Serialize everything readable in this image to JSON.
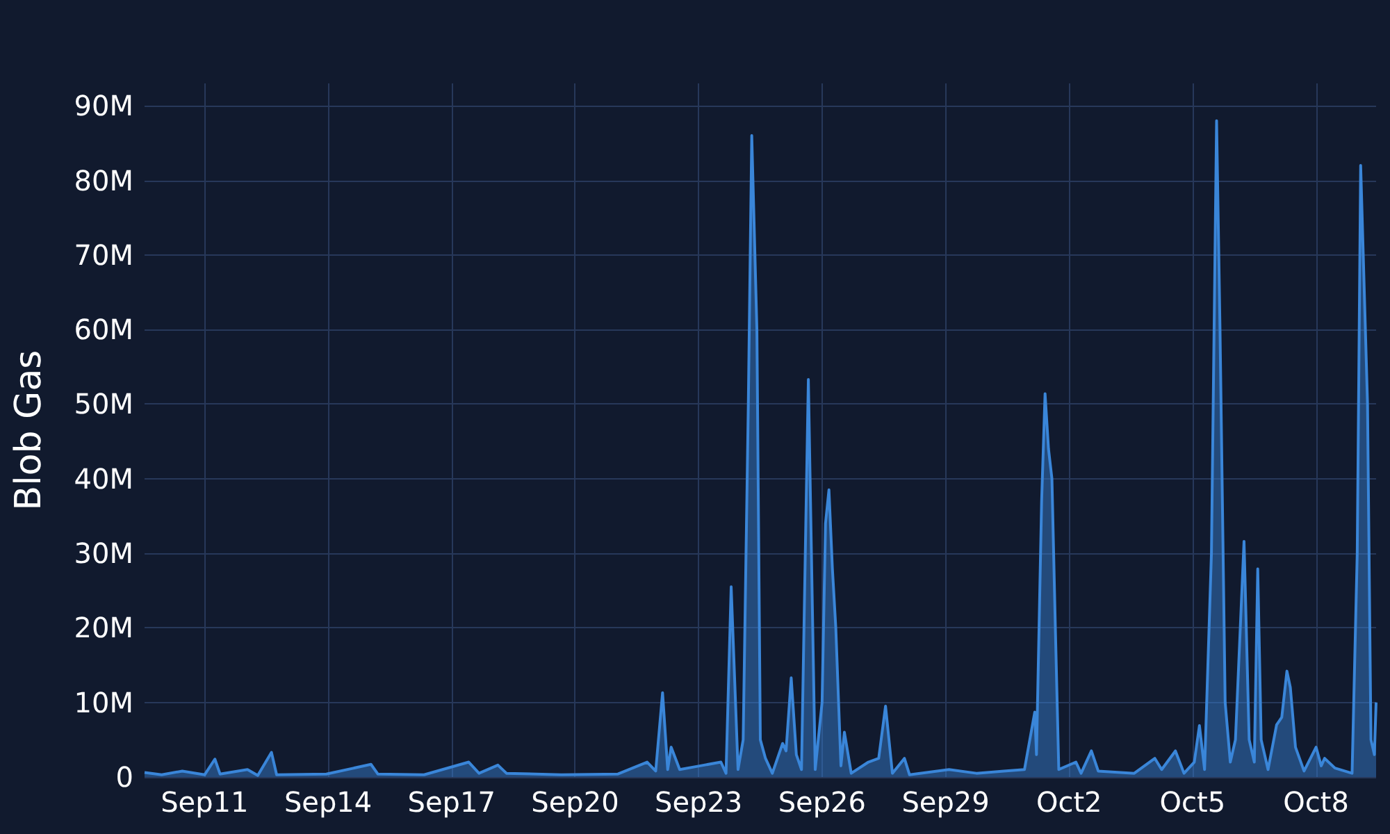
{
  "chart_data": {
    "type": "area",
    "ylabel": "Blob Gas",
    "color": "#3a86d9",
    "grid": true,
    "xlim": [
      "--09-09T13:00",
      "--10-09T11:00"
    ],
    "xticks": [
      {
        "value": "--09-11",
        "label": "Sep11"
      },
      {
        "value": "--09-14",
        "label": "Sep14"
      },
      {
        "value": "--09-17",
        "label": "Sep17"
      },
      {
        "value": "--09-20",
        "label": "Sep20"
      },
      {
        "value": "--09-23",
        "label": "Sep23"
      },
      {
        "value": "--09-26",
        "label": "Sep26"
      },
      {
        "value": "--09-29",
        "label": "Sep29"
      },
      {
        "value": "--10-02",
        "label": "Oct2"
      },
      {
        "value": "--10-05",
        "label": "Oct5"
      },
      {
        "value": "--10-08",
        "label": "Oct8"
      }
    ],
    "ylim": [
      0,
      93000000
    ],
    "yticks": [
      0,
      {
        "value": 10000000,
        "label": "10M"
      },
      {
        "value": 20000000,
        "label": "20M"
      },
      {
        "value": 30000000,
        "label": "30M"
      },
      {
        "value": 40000000,
        "label": "40M"
      },
      {
        "value": 50000000,
        "label": "50M"
      },
      {
        "value": 60000000,
        "label": "60M"
      },
      {
        "value": 70000000,
        "label": "70M"
      },
      {
        "value": 80000000,
        "label": "80M"
      },
      {
        "value": 90000000,
        "label": "90M"
      }
    ],
    "x": [
      "--09-09T13:00",
      "--09-09T23:00",
      "--09-10T11:00",
      "--09-11T00:00",
      "--09-11T06:00",
      "--09-11T09:00",
      "--09-12T01:00",
      "--09-12T07:00",
      "--09-12T15:00",
      "--09-12T18:00",
      "--09-13T23:00",
      "--09-15T01:00",
      "--09-15T05:00",
      "--09-16T08:00",
      "--09-17T10:00",
      "--09-17T16:00",
      "--09-18T03:00",
      "--09-18T08:00",
      "--09-19T16:00",
      "--09-21T01:00",
      "--09-21T18:00",
      "--09-21T23:00",
      "--09-22T03:00",
      "--09-22T06:00",
      "--09-22T08:00",
      "--09-22T13:00",
      "--09-23T01:00",
      "--09-23T13:00",
      "--09-23T16:00",
      "--09-23T19:00",
      "--09-23T23:00",
      "--09-24T02:00",
      "--09-24T05:00",
      "--09-24T07:00",
      "--09-24T10:00",
      "--09-24T12:00",
      "--09-24T15:00",
      "--09-24T19:00",
      "--09-25T01:00",
      "--09-25T03:00",
      "--09-25T06:00",
      "--09-25T09:00",
      "--09-25T12:00",
      "--09-25T16:00",
      "--09-25T20:00",
      "--09-26T00:00",
      "--09-26T02:00",
      "--09-26T04:00",
      "--09-26T06:00",
      "--09-26T08:00",
      "--09-26T11:00",
      "--09-26T13:00",
      "--09-26T17:00",
      "--09-27T03:00",
      "--09-27T09:00",
      "--09-27T13:00",
      "--09-27T17:00",
      "--09-28T00:00",
      "--09-28T03:00",
      "--09-29T02:00",
      "--09-29T18:00",
      "--09-30T10:00",
      "--09-30T22:00",
      "--10-01T04:00",
      "--10-01T05:00",
      "--10-01T08:00",
      "--10-01T10:00",
      "--10-01T12:00",
      "--10-01T14:00",
      "--10-01T16:00",
      "--10-01T18:00",
      "--10-02T04:00",
      "--10-02T07:00",
      "--10-02T13:00",
      "--10-02T17:00",
      "--10-03T14:00",
      "--10-04T02:00",
      "--10-04T06:00",
      "--10-04T14:00",
      "--10-04T19:00",
      "--10-05T01:00",
      "--10-05T04:00",
      "--10-05T07:00",
      "--10-05T11:00",
      "--10-05T14:00",
      "--10-05T16:00",
      "--10-05T19:00",
      "--10-05T22:00",
      "--10-06T01:00",
      "--10-06T06:00",
      "--10-06T09:00",
      "--10-06T12:00",
      "--10-06T14:00",
      "--10-06T16:00",
      "--10-06T20:00",
      "--10-07T01:00",
      "--10-07T04:00",
      "--10-07T07:00",
      "--10-07T09:00",
      "--10-07T12:00",
      "--10-07T17:00",
      "--10-08T00:00",
      "--10-08T03:00",
      "--10-08T05:00",
      "--10-08T11:00",
      "--10-08T21:00",
      "--10-09T00:00",
      "--10-09T02:00",
      "--10-09T06:00",
      "--10-09T08:00",
      "--10-09T10:00",
      "--10-09T11:00"
    ],
    "values": [
      600000,
      300000,
      800000,
      300000,
      2400000,
      400000,
      1000000,
      200000,
      3300000,
      300000,
      400000,
      1700000,
      400000,
      300000,
      2000000,
      500000,
      1600000,
      500000,
      300000,
      400000,
      2000000,
      800000,
      11300000,
      1000000,
      4000000,
      1000000,
      1500000,
      2000000,
      500000,
      25500000,
      1000000,
      5000000,
      50000000,
      86000000,
      60000000,
      5000000,
      2500000,
      500000,
      4500000,
      3500000,
      13300000,
      3000000,
      1000000,
      53300000,
      1000000,
      10000000,
      34000000,
      38500000,
      28000000,
      20000000,
      1500000,
      6000000,
      500000,
      2000000,
      2500000,
      9500000,
      500000,
      2500000,
      300000,
      1000000,
      500000,
      800000,
      1000000,
      8700000,
      3000000,
      37000000,
      51400000,
      44000000,
      40000000,
      20000000,
      1000000,
      2000000,
      500000,
      3500000,
      800000,
      500000,
      2500000,
      1000000,
      3500000,
      500000,
      2000000,
      6900000,
      1000000,
      30000000,
      88000000,
      60000000,
      10000000,
      2000000,
      5000000,
      31600000,
      5000000,
      2000000,
      27900000,
      5000000,
      1000000,
      7000000,
      8000000,
      14200000,
      12000000,
      4000000,
      800000,
      4000000,
      1500000,
      2500000,
      1200000,
      500000,
      30000000,
      82000000,
      50000000,
      5000000,
      3000000,
      10000000
    ]
  }
}
